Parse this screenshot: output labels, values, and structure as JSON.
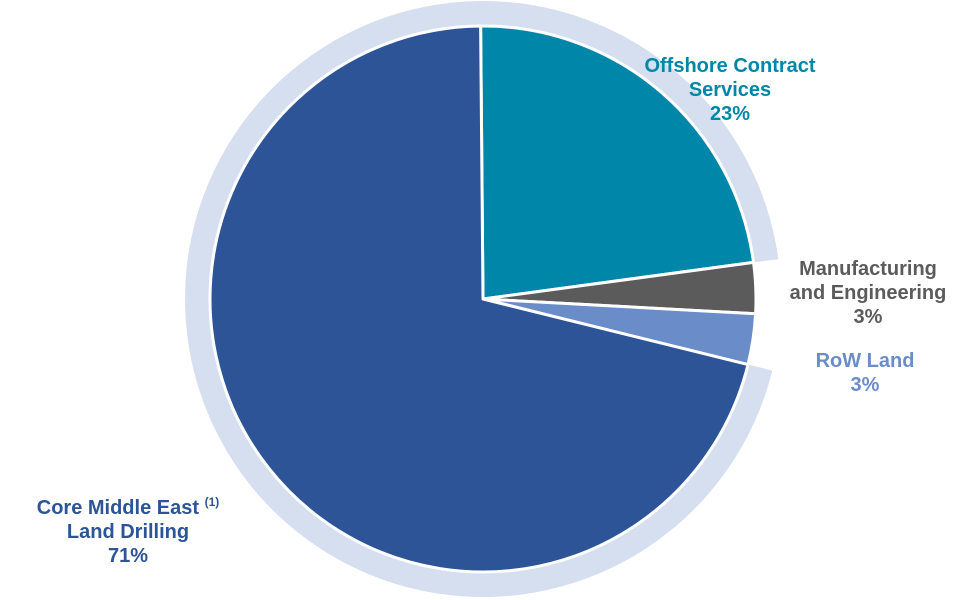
{
  "chart_data": {
    "type": "pie",
    "title": "",
    "start_angle_deg": -0.5,
    "direction": "clockwise",
    "slices": [
      {
        "label_lines": [
          "Offshore Contract",
          "Services"
        ],
        "value": 23,
        "value_label": "23%",
        "color": "#0086A8"
      },
      {
        "label_lines": [
          "Manufacturing",
          "and Engineering"
        ],
        "value": 3,
        "value_label": "3%",
        "color": "#5B5B5B"
      },
      {
        "label_lines": [
          "RoW Land"
        ],
        "value": 3,
        "value_label": "3%",
        "color": "#6A8CC8"
      },
      {
        "label_lines": [
          "Core Middle East",
          "Land Drilling"
        ],
        "footnote": "(1)",
        "value": 71,
        "value_label": "71%",
        "color": "#2C5496"
      }
    ],
    "ring_color": "#D6DFF0"
  }
}
